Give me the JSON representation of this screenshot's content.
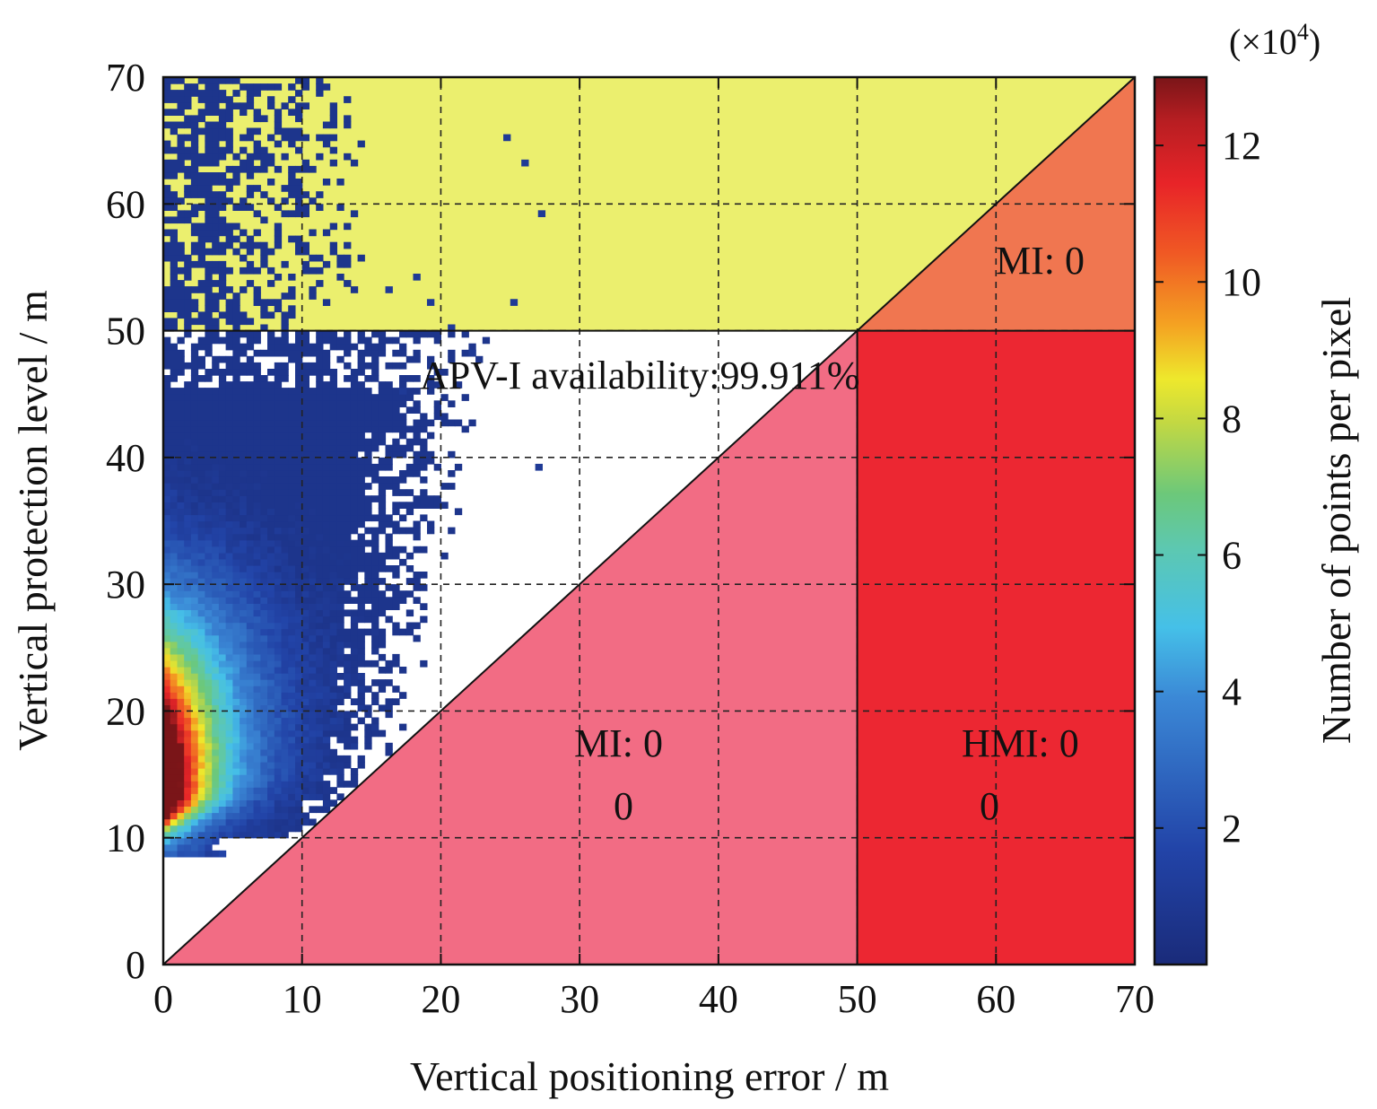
{
  "chart_data": {
    "type": "heatmap",
    "subtype": "stanford-diagram",
    "xlabel": "Vertical positioning error / m",
    "ylabel": "Vertical protection level / m",
    "xlim": [
      0,
      70
    ],
    "ylim": [
      0,
      70
    ],
    "xticks": [
      "0",
      "10",
      "20",
      "30",
      "40",
      "50",
      "60",
      "70"
    ],
    "yticks": [
      "0",
      "10",
      "20",
      "30",
      "40",
      "50",
      "60",
      "70"
    ],
    "grid": true,
    "alert_limit": 50,
    "regions": [
      {
        "name": "unavailable",
        "color": "#ebef6e"
      },
      {
        "name": "mi-unavailable",
        "color": "#f07650"
      },
      {
        "name": "mi",
        "color": "#f26c84"
      },
      {
        "name": "hmi",
        "color": "#ec2732"
      }
    ],
    "annotations": {
      "availability": "APV-I availability:99.911%",
      "mi_upper": "MI: 0",
      "mi_lower": "MI: 0",
      "mi_lower_count": "0",
      "hmi": "HMI: 0",
      "hmi_count": "0"
    },
    "colorbar": {
      "label": "Number of points per pixel",
      "exponent": "(×10",
      "exponent_power": "4",
      "exponent_close": ")",
      "range": [
        0,
        13
      ],
      "ticks": [
        "2",
        "4",
        "6",
        "8",
        "10",
        "12"
      ],
      "colormap": "jet"
    }
  }
}
